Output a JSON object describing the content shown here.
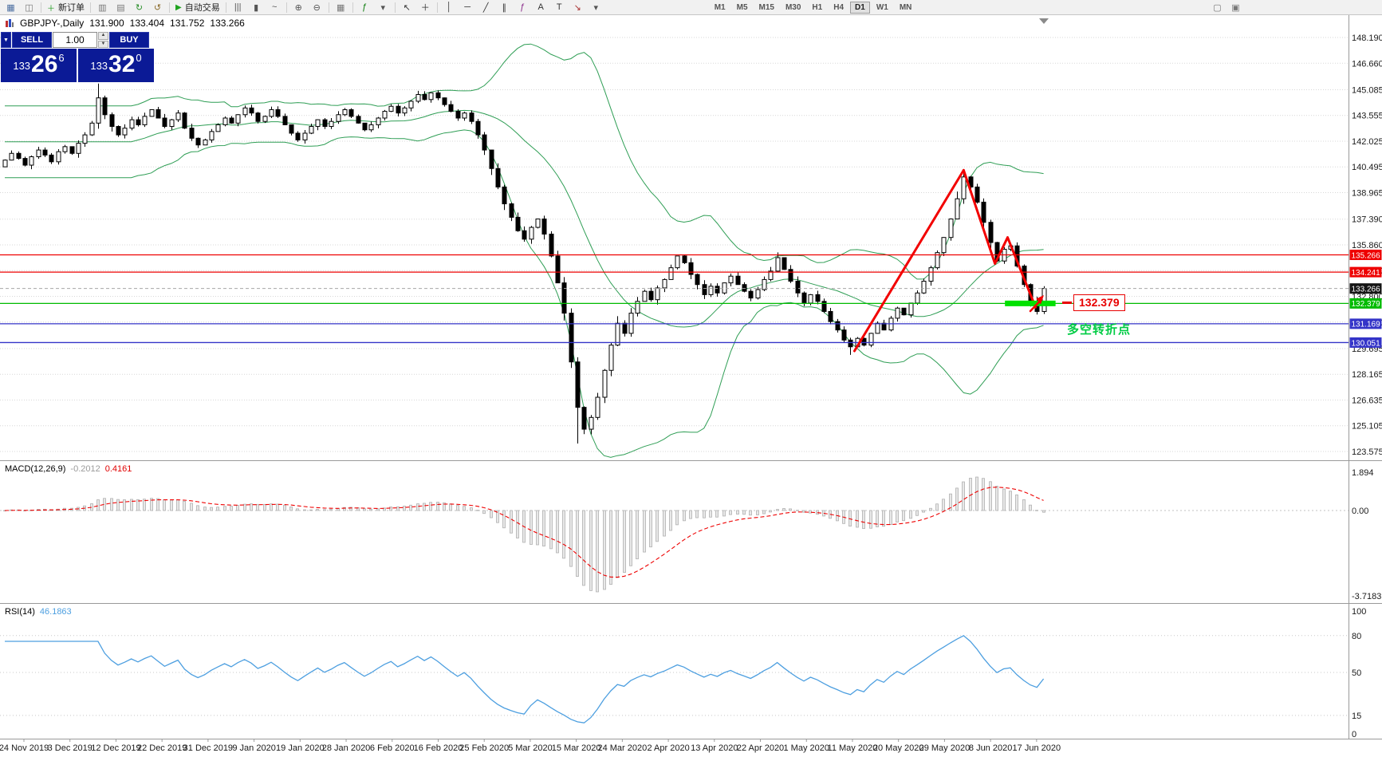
{
  "toolbar": {
    "active_timeframe": "D1",
    "items": [
      {
        "type": "icon",
        "name": "new-chart-icon",
        "glyph": "▦",
        "color": "#4a6da0"
      },
      {
        "type": "icon",
        "name": "profiles-icon",
        "glyph": "◫",
        "color": "#777777"
      },
      {
        "type": "sep"
      },
      {
        "type": "text",
        "name": "new-order-button",
        "label": "新订单",
        "glyph": "＋",
        "glyph_color": "#1a9a1a"
      },
      {
        "type": "sep"
      },
      {
        "type": "icon",
        "name": "market-watch-icon",
        "glyph": "▥",
        "color": "#777777"
      },
      {
        "type": "icon",
        "name": "navigator-icon",
        "glyph": "▤",
        "color": "#777777"
      },
      {
        "type": "icon",
        "name": "refresh-icon",
        "glyph": "↻",
        "color": "#2a8f2a"
      },
      {
        "type": "icon",
        "name": "history-center-icon",
        "glyph": "↺",
        "color": "#8a6b2a"
      },
      {
        "type": "sep"
      },
      {
        "type": "text",
        "name": "autotrading-button",
        "label": "自动交易",
        "glyph": "▶",
        "glyph_color": "#1fa31f"
      },
      {
        "type": "sep"
      },
      {
        "type": "icon",
        "name": "bar-chart-icon",
        "glyph": "|||",
        "color": "#555555"
      },
      {
        "type": "icon",
        "name": "candlestick-chart-icon",
        "glyph": "▮",
        "color": "#555555"
      },
      {
        "type": "icon",
        "name": "line-chart-icon",
        "glyph": "~",
        "color": "#555555"
      },
      {
        "type": "sep"
      },
      {
        "type": "icon",
        "name": "zoom-in-icon",
        "glyph": "⊕",
        "color": "#555555"
      },
      {
        "type": "icon",
        "name": "zoom-out-icon",
        "glyph": "⊖",
        "color": "#555555"
      },
      {
        "type": "sep"
      },
      {
        "type": "icon",
        "name": "tile-windows-icon",
        "glyph": "▦",
        "color": "#777777"
      },
      {
        "type": "sep"
      },
      {
        "type": "icon",
        "name": "indicators-icon",
        "glyph": "ƒ",
        "color": "#0a7a0a"
      },
      {
        "type": "icon",
        "name": "indicators-dropdown",
        "glyph": "▾",
        "color": "#555555"
      },
      {
        "type": "sep"
      },
      {
        "type": "icon",
        "name": "cursor-icon",
        "glyph": "↖",
        "color": "#333333"
      },
      {
        "type": "icon",
        "name": "crosshair-icon",
        "glyph": "＋",
        "color": "#333333"
      },
      {
        "type": "sep"
      },
      {
        "type": "icon",
        "name": "vertical-line-icon",
        "glyph": "│",
        "color": "#333333"
      },
      {
        "type": "icon",
        "name": "horizontal-line-icon",
        "glyph": "─",
        "color": "#333333"
      },
      {
        "type": "icon",
        "name": "trendline-icon",
        "glyph": "╱",
        "color": "#333333"
      },
      {
        "type": "icon",
        "name": "equidistant-channel-icon",
        "glyph": "∥",
        "color": "#333333"
      },
      {
        "type": "icon",
        "name": "fibonacci-icon",
        "glyph": "ƒ",
        "color": "#8a2a8a"
      },
      {
        "type": "icon",
        "name": "text-icon",
        "glyph": "A",
        "color": "#333333"
      },
      {
        "type": "icon",
        "name": "text-label-icon",
        "glyph": "T",
        "color": "#333333"
      },
      {
        "type": "icon",
        "name": "arrows-icon",
        "glyph": "↘",
        "color": "#aa3333"
      },
      {
        "type": "icon",
        "name": "arrows-dropdown",
        "glyph": "▾",
        "color": "#555555"
      },
      {
        "type": "gap",
        "w": 130
      },
      {
        "type": "tf",
        "name": "timeframe-m1",
        "label": "M1"
      },
      {
        "type": "tf",
        "name": "timeframe-m5",
        "label": "M5"
      },
      {
        "type": "tf",
        "name": "timeframe-m15",
        "label": "M15"
      },
      {
        "type": "tf",
        "name": "timeframe-m30",
        "label": "M30"
      },
      {
        "type": "tf",
        "name": "timeframe-h1",
        "label": "H1"
      },
      {
        "type": "tf",
        "name": "timeframe-h4",
        "label": "H4"
      },
      {
        "type": "tf",
        "name": "timeframe-d1",
        "label": "D1"
      },
      {
        "type": "tf",
        "name": "timeframe-w1",
        "label": "W1"
      },
      {
        "type": "tf",
        "name": "timeframe-mn",
        "label": "MN"
      },
      {
        "type": "flex"
      },
      {
        "type": "icon",
        "name": "chart-window-icon",
        "glyph": "▢",
        "color": "#777777"
      },
      {
        "type": "icon",
        "name": "docking-icon",
        "glyph": "▣",
        "color": "#777777"
      },
      {
        "type": "gap",
        "w": 170
      }
    ]
  },
  "symbol_bar": {
    "title": "GBPJPY-,Daily",
    "open": "131.900",
    "high": "133.404",
    "low": "131.752",
    "close": "133.266"
  },
  "trade_panel": {
    "collapse_glyph": "▼",
    "sell_label": "SELL",
    "buy_label": "BUY",
    "lot": "1.00",
    "sell": {
      "small": "133",
      "big": "26",
      "sup": "6"
    },
    "buy": {
      "small": "133",
      "big": "32",
      "sup": "0"
    }
  },
  "chart_data": {
    "type": "candlestick",
    "symbol": "GBPJPY",
    "timeframe": "Daily",
    "price_axis_ticks": [
      "148.190",
      "146.660",
      "145.085",
      "143.555",
      "142.025",
      "140.495",
      "138.965",
      "137.390",
      "135.860",
      "134.330",
      "132.800",
      "131.270",
      "129.695",
      "128.165",
      "126.635",
      "125.105",
      "123.575"
    ],
    "x_axis_dates": [
      "24 Nov 2019",
      "3 Dec 2019",
      "12 Dec 2019",
      "22 Dec 2019",
      "31 Dec 2019",
      "9 Jan 2020",
      "19 Jan 2020",
      "28 Jan 2020",
      "6 Feb 2020",
      "16 Feb 2020",
      "25 Feb 2020",
      "5 Mar 2020",
      "15 Mar 2020",
      "24 Mar 2020",
      "2 Apr 2020",
      "13 Apr 2020",
      "22 Apr 2020",
      "1 May 2020",
      "11 May 2020",
      "20 May 2020",
      "29 May 2020",
      "8 Jun 2020",
      "17 Jun 2020"
    ],
    "closes": [
      140.9,
      141.3,
      141.0,
      140.6,
      141.1,
      141.5,
      141.2,
      140.8,
      141.4,
      141.7,
      141.3,
      141.9,
      142.4,
      143.1,
      144.6,
      143.6,
      142.9,
      142.4,
      142.8,
      143.3,
      143.0,
      143.5,
      143.9,
      143.4,
      142.9,
      143.3,
      143.7,
      142.8,
      142.2,
      141.8,
      142.1,
      142.6,
      143.0,
      143.4,
      143.1,
      143.6,
      144.0,
      143.7,
      143.2,
      143.5,
      143.9,
      143.5,
      143.0,
      142.5,
      142.1,
      142.5,
      142.9,
      143.3,
      142.9,
      143.2,
      143.6,
      143.9,
      143.5,
      143.1,
      142.7,
      143.0,
      143.4,
      143.8,
      144.1,
      143.7,
      144.0,
      144.4,
      144.8,
      144.5,
      144.9,
      144.6,
      144.2,
      143.8,
      143.4,
      143.7,
      143.2,
      142.4,
      141.5,
      140.4,
      139.3,
      138.3,
      137.5,
      136.7,
      136.2,
      136.9,
      137.4,
      136.5,
      135.2,
      133.6,
      131.8,
      128.9,
      126.2,
      124.9,
      125.6,
      126.8,
      128.4,
      129.9,
      131.2,
      130.6,
      131.8,
      132.5,
      133.1,
      132.6,
      133.3,
      133.8,
      134.5,
      135.2,
      134.8,
      134.1,
      133.5,
      132.9,
      133.4,
      133.0,
      133.6,
      134.0,
      133.5,
      133.1,
      132.7,
      133.2,
      133.8,
      134.3,
      135.1,
      134.4,
      133.7,
      133.0,
      132.4,
      132.9,
      132.5,
      131.9,
      131.3,
      130.8,
      130.2,
      129.8,
      130.3,
      129.9,
      130.6,
      131.2,
      130.8,
      131.5,
      132.1,
      131.7,
      132.4,
      133.0,
      133.7,
      134.5,
      135.4,
      136.3,
      137.4,
      138.6,
      139.9,
      139.3,
      138.4,
      137.2,
      136.0,
      134.9,
      135.6,
      135.8,
      134.6,
      133.5,
      132.5,
      131.9,
      133.266
    ],
    "wick_overrides": {
      "14": {
        "high": 145.45
      },
      "86": {
        "low": 124.05
      },
      "127": {
        "low": 129.32
      },
      "144": {
        "high": 140.35
      },
      "155": {
        "low": 131.72
      },
      "156": {
        "low": 131.752,
        "high": 133.404
      }
    },
    "bollinger": {
      "period": 20,
      "deviation": 2.0,
      "color": "#2f9e55"
    },
    "hlines": [
      {
        "price": 135.266,
        "color": "#ee0000"
      },
      {
        "price": 134.241,
        "color": "#ee0000"
      },
      {
        "price": 132.379,
        "color": "#00bb00"
      },
      {
        "price": 131.169,
        "color": "#3434c8"
      },
      {
        "price": 130.051,
        "color": "#3434c8"
      }
    ],
    "bid_line": {
      "price": 133.266,
      "color": "#a6a6a6"
    },
    "axis_badges": [
      {
        "text": "135.266",
        "bg": "#ee0000"
      },
      {
        "text": "134.241",
        "bg": "#ee0000"
      },
      {
        "text": "133.266",
        "bg": "#151515"
      },
      {
        "text": "132.379",
        "bg": "#00bb00"
      },
      {
        "text": "131.169",
        "bg": "#3434c8"
      },
      {
        "text": "130.051",
        "bg": "#3434c8"
      }
    ],
    "support_bar": {
      "price": 132.379,
      "i_start": 150.2,
      "i_end": 157.8,
      "color": "#00e100",
      "thickness": 7
    },
    "trend_lines": [
      [
        127.6,
        129.55,
        144.0,
        140.3
      ],
      [
        144.0,
        140.3,
        148.7,
        134.75
      ],
      [
        148.7,
        134.75,
        150.6,
        136.3
      ],
      [
        150.6,
        136.3,
        154.8,
        132.15
      ]
    ],
    "trend_color": "#f20000",
    "price_tag": {
      "text": "132.379",
      "color": "#e80000"
    },
    "annotation_text": {
      "text": "多空转折点",
      "color": "#00cc44"
    },
    "macd": {
      "label": "MACD(12,26,9)",
      "value_main": "-0.2012",
      "value_signal": "0.4161",
      "fast": 12,
      "slow": 26,
      "signal": 9,
      "axis_top": "1.894",
      "axis_zero": "0.00",
      "axis_bottom": "-3.7183",
      "histogram_color": "#e8e8e8",
      "histogram_border": "#b0b0b0",
      "signal_color": "#ee0000"
    },
    "rsi": {
      "label": "RSI(14)",
      "value": "46.1863",
      "period": 14,
      "axis": [
        "100",
        "80",
        "50",
        "15",
        "0"
      ],
      "levels": [
        80,
        50,
        15
      ],
      "color": "#4d9fe0"
    }
  }
}
